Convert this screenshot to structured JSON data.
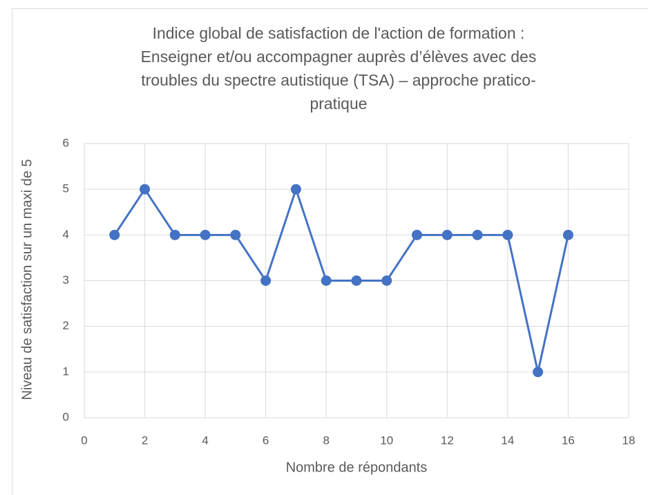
{
  "chart_data": {
    "type": "line",
    "title": [
      "Indice global de satisfaction de l'action de formation  :",
      "Enseigner et/ou accompagner auprès d’élèves avec des",
      "troubles du spectre autistique (TSA) – approche pratico-",
      "pratique"
    ],
    "x_label": "Nombre de répondants",
    "y_label": "Niveau de satisfaction sur un maxi de 5",
    "x": [
      1,
      2,
      3,
      4,
      5,
      6,
      7,
      8,
      9,
      10,
      11,
      12,
      13,
      14,
      15,
      16
    ],
    "series": [
      {
        "color": "#4472c4",
        "values": [
          4,
          5,
          4,
          4,
          4,
          3,
          5,
          3,
          3,
          3,
          4,
          4,
          4,
          4,
          1,
          4
        ]
      }
    ],
    "xlim": [
      0,
      18
    ],
    "xticks": [
      0,
      2,
      4,
      6,
      8,
      10,
      12,
      14,
      16,
      18
    ],
    "ylim": [
      0,
      6
    ],
    "yticks": [
      0,
      1,
      2,
      3,
      4,
      5,
      6
    ],
    "grid": true
  }
}
